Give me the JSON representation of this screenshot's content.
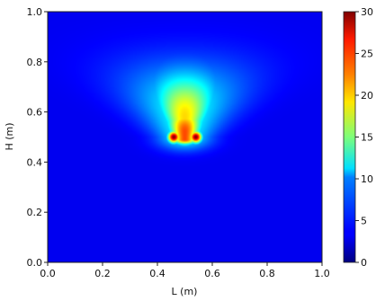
{
  "chart_data": {
    "type": "heatmap",
    "title": "",
    "xlabel": "L (m)",
    "ylabel": "H (m)",
    "xlim": [
      0.0,
      1.0
    ],
    "ylim": [
      0.0,
      1.0
    ],
    "x_ticks": [
      "0.0",
      "0.2",
      "0.4",
      "0.6",
      "0.8",
      "1.0"
    ],
    "y_ticks": [
      "0.0",
      "0.2",
      "0.4",
      "0.6",
      "0.8",
      "1.0"
    ],
    "colormap": "jet",
    "grid": false,
    "colorbar": {
      "range": [
        0,
        30
      ],
      "ticks": [
        "0",
        "5",
        "10",
        "15",
        "20",
        "25",
        "30"
      ],
      "placement": "right"
    },
    "field": {
      "description_sources": [
        {
          "x": 0.46,
          "y": 0.5,
          "value": 30
        },
        {
          "x": 0.54,
          "y": 0.5,
          "value": 30
        }
      ],
      "plume_top_y": 0.8,
      "background_value": 0,
      "peak_value": 30
    }
  }
}
